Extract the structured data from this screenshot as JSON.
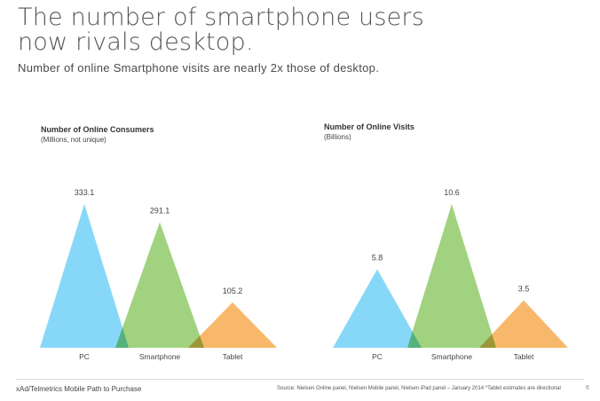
{
  "title_line1": "The number of smartphone users",
  "title_line2": "now rivals desktop.",
  "subtitle": "Number of online Smartphone visits are nearly 2x those of desktop.",
  "colors": {
    "pc": "#6dcff6",
    "smartphone": "#8cc863",
    "tablet": "#f7a84a"
  },
  "chart_data": [
    {
      "type": "area",
      "title": "Number of Online Consumers",
      "unit": "(Millions, not unique)",
      "categories": [
        "PC",
        "Smartphone",
        "Tablet"
      ],
      "values": [
        333.1,
        291.1,
        105.2
      ],
      "value_labels": [
        "333.1",
        "291.1",
        "105.2"
      ],
      "ylim": [
        0,
        333.1
      ],
      "grid": false
    },
    {
      "type": "area",
      "title": "Number of Online Visits",
      "unit": "(Billions)",
      "categories": [
        "PC",
        "Smartphone",
        "Tablet"
      ],
      "values": [
        5.8,
        10.6,
        3.5
      ],
      "value_labels": [
        "5.8",
        "10.6",
        "3.5"
      ],
      "ylim": [
        0,
        10.6
      ],
      "grid": false
    }
  ],
  "footer": {
    "left": "xAd/Telmetrics Mobile Path to Purchase",
    "source": "Source: Nielsen Online panel, Nielsen Mobile panel, Nielsen iPad panel – January 2014  *Tablet estimates are directional",
    "page": "6"
  }
}
